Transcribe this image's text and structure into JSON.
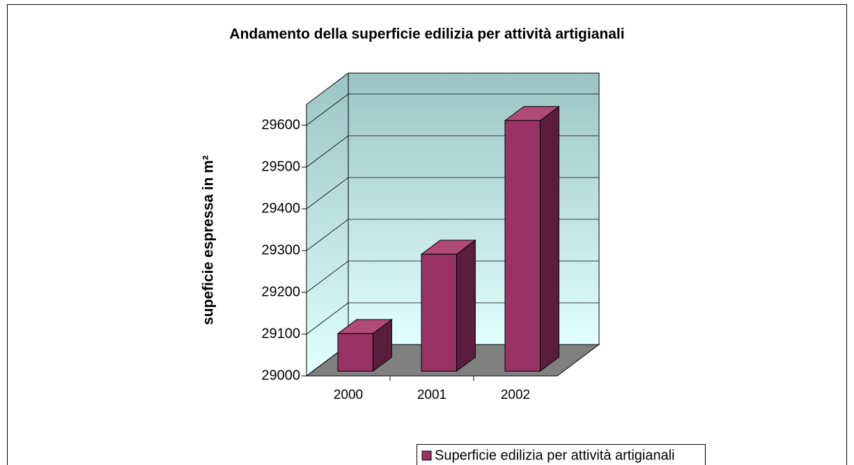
{
  "chart_data": {
    "type": "bar3d",
    "title": "Andamento della superficie edilizia per attività artigianali",
    "y_label": "supeficie espressa in m²",
    "categories": [
      "2000",
      "2001",
      "2002"
    ],
    "series": [
      {
        "name": "Superficie edilizia per attività artigianali",
        "color": "#993366",
        "values": [
          29090,
          29280,
          29600
        ]
      }
    ],
    "ylim": [
      29000,
      29650
    ],
    "yticks": [
      29000,
      29100,
      29200,
      29300,
      29400,
      29500,
      29600
    ],
    "grid": true,
    "legend": "bottom-right"
  }
}
